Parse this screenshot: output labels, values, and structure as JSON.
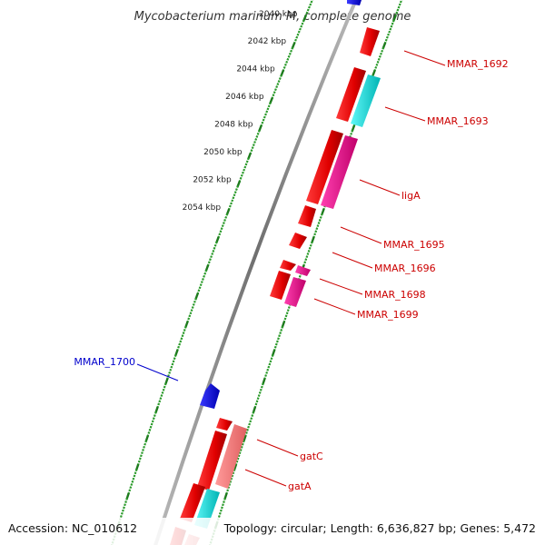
{
  "title": "Mycobacterium marinum M, complete genome",
  "footer": {
    "accession": "Accession: NC_010612",
    "stats": "Topology: circular; Length: 6,636,827 bp; Genes: 5,472"
  },
  "colors": {
    "backbone": "#8a8a8a",
    "tick_major": "#1e7a1e",
    "tick_minor": "#2a9a2a",
    "label_red": "#cc0000",
    "label_blue": "#0000cc"
  },
  "kbp_labels": [
    "2040 kbp",
    "2042 kbp",
    "2044 kbp",
    "2046 kbp",
    "2048 kbp",
    "2050 kbp",
    "2052 kbp",
    "2054 kbp"
  ],
  "gene_labels": [
    {
      "name": "MMAR_1692",
      "color": "#cc0000"
    },
    {
      "name": "MMAR_1693",
      "color": "#cc0000"
    },
    {
      "name": "ligA",
      "color": "#cc0000"
    },
    {
      "name": "MMAR_1695",
      "color": "#cc0000"
    },
    {
      "name": "MMAR_1696",
      "color": "#cc0000"
    },
    {
      "name": "MMAR_1698",
      "color": "#cc0000"
    },
    {
      "name": "MMAR_1699",
      "color": "#cc0000"
    },
    {
      "name": "MMAR_1700",
      "color": "#0000cc"
    },
    {
      "name": "gatC",
      "color": "#cc0000"
    },
    {
      "name": "gatA",
      "color": "#cc0000"
    }
  ]
}
